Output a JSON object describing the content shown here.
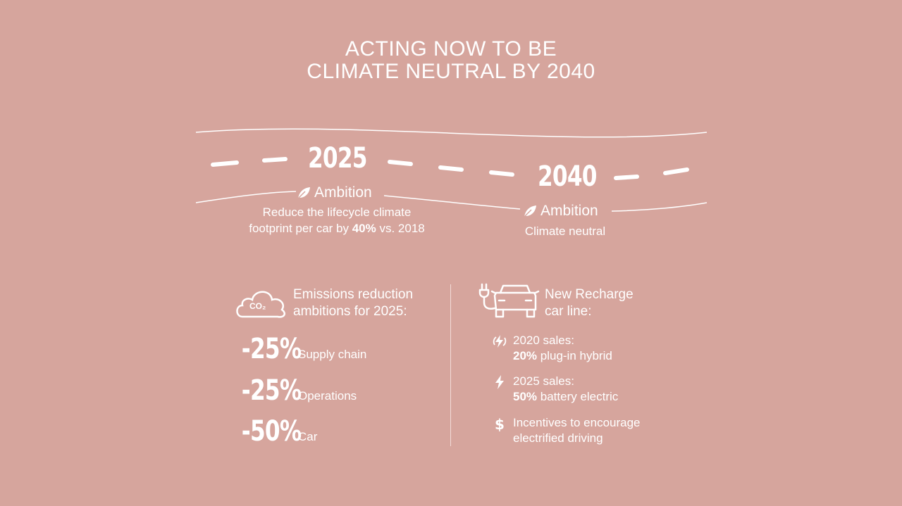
{
  "title": {
    "line1": "ACTING NOW TO BE",
    "line2": "CLIMATE NEUTRAL BY 2040"
  },
  "timeline": {
    "milestones": [
      {
        "year": "2025",
        "ambition_label": "Ambition",
        "description_line1": "Reduce the lifecycle climate",
        "description_pre": "footprint per car by ",
        "description_bold": "40%",
        "description_post": " vs. 2018"
      },
      {
        "year": "2040",
        "ambition_label": "Ambition",
        "description": "Climate neutral"
      }
    ]
  },
  "emissions": {
    "icon_text": "CO₂",
    "heading_line1": "Emissions reduction",
    "heading_line2": "ambitions for 2025:",
    "items": [
      {
        "value": "-25%",
        "label": "Supply chain"
      },
      {
        "value": "-25%",
        "label": "Operations"
      },
      {
        "value": "-50%",
        "label": "Car"
      }
    ]
  },
  "recharge": {
    "heading_line1": "New Recharge",
    "heading_line2": "car line:",
    "items": [
      {
        "icon": "hybrid-bolt-icon",
        "line1": "2020 sales:",
        "bold": "20%",
        "rest": " plug-in hybrid"
      },
      {
        "icon": "bolt-icon",
        "line1": "2025 sales:",
        "bold": "50%",
        "rest": " battery electric"
      },
      {
        "icon": "dollar-icon",
        "line1": "Incentives to encourage",
        "line2": "electrified driving"
      }
    ]
  }
}
